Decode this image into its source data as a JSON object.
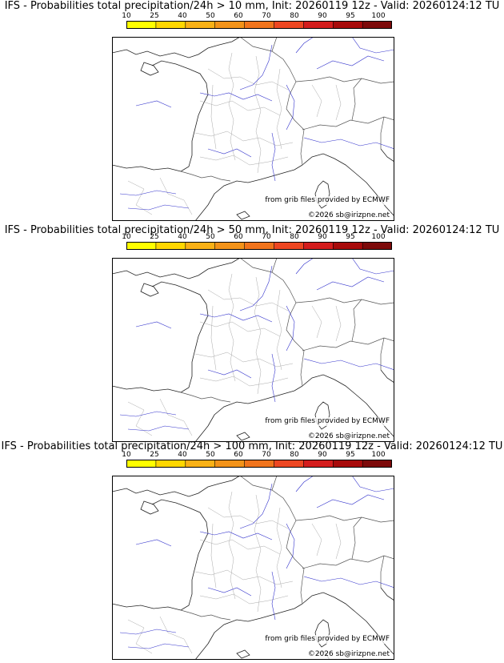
{
  "colorbar": {
    "ticks": [
      "10",
      "25",
      "40",
      "50",
      "60",
      "70",
      "80",
      "90",
      "95",
      "100"
    ],
    "colors": [
      "#ffff00",
      "#ffd700",
      "#f9b116",
      "#f39319",
      "#f1741c",
      "#ee4722",
      "#d41d1d",
      "#a80b0b",
      "#7d0a0a",
      "#500000"
    ]
  },
  "panels": [
    {
      "title": "IFS - Probabilities total precipitation/24h > 10 mm, Init: 20260119 12z - Valid: 20260124:12 TU"
    },
    {
      "title": "IFS - Probabilities total precipitation/24h > 50 mm, Init: 20260119 12z - Valid: 20260124:12 TU"
    },
    {
      "title": "IFS - Probabilities total precipitation/24h > 100 mm, Init: 20260119 12z - Valid: 20260124:12 TU"
    }
  ],
  "credits": {
    "source": "from grib files provided by ECMWF",
    "copyright": "©2026 sb@irizpne.net"
  }
}
